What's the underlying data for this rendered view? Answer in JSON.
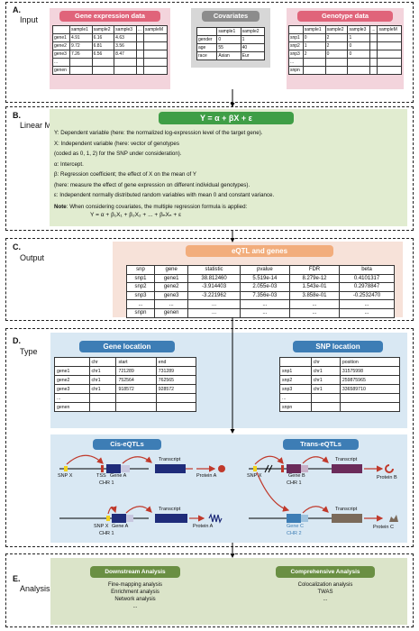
{
  "sections": {
    "a": {
      "label": "A.",
      "sub": "Input"
    },
    "b": {
      "label": "B.",
      "sub": "Linear Model"
    },
    "c": {
      "label": "C.",
      "sub": "Output"
    },
    "d": {
      "label": "D.",
      "sub": "Type"
    },
    "e": {
      "label": "E.",
      "sub": "Analysis"
    }
  },
  "input": {
    "gene_expr": {
      "title": "Gene expression data",
      "header": [
        "",
        "sample1",
        "sample2",
        "sample3",
        "...",
        "sampleM"
      ],
      "rows": [
        [
          "gene1",
          "4.91",
          "6.16",
          "4.63",
          "",
          ""
        ],
        [
          "gene2",
          "9.72",
          "6.81",
          "3.56",
          "",
          ""
        ],
        [
          "gene3",
          "7.26",
          "6.56",
          "8.47",
          "",
          ""
        ],
        [
          "...",
          "",
          "",
          "",
          "",
          ""
        ],
        [
          "genen",
          "",
          "",
          "",
          "",
          ""
        ]
      ]
    },
    "covariates": {
      "title": "Covariates",
      "header": [
        "",
        "sample1",
        "sample2"
      ],
      "rows": [
        [
          "gender",
          "0",
          "1"
        ],
        [
          "age",
          "55",
          "40"
        ],
        [
          "race",
          "Asian",
          "Eur"
        ]
      ]
    },
    "genotype": {
      "title": "Genotype data",
      "header": [
        "",
        "sample1",
        "sample2",
        "sample3",
        "...",
        "sampleM"
      ],
      "rows": [
        [
          "snp1",
          "0",
          "2",
          "1",
          "",
          ""
        ],
        [
          "snp2",
          "1",
          "2",
          "0",
          "",
          ""
        ],
        [
          "snp3",
          "2",
          "0",
          "0",
          "",
          ""
        ],
        [
          "...",
          "",
          "",
          "",
          "",
          ""
        ],
        [
          "snpn",
          "",
          "",
          "",
          "",
          ""
        ]
      ]
    }
  },
  "model": {
    "formula": "Y = α + βX + ε",
    "lines": [
      "Y: Dependent variable (here: the normalized log-expression level of the target gene).",
      "X: Independent variable (here: vector of genotypes",
      "      (coded as 0, 1, 2) for the SNP under consideration).",
      "α: Intercept.",
      "β: Regression coefficient; the effect of X on the mean of Y",
      "      (here: measure the effect of gene expression on different individual genotypes).",
      "ε: Independent normally distributed random variables with mean 0 and constant variance."
    ],
    "note_label": "Note",
    "note_text": ": When considering covariates, the multiple regression formula is applied:",
    "multi_formula": "Y = α + β₁X₁ + β₂X₂ + ... + βₙXₙ + ε"
  },
  "output": {
    "title": "eQTL and genes",
    "header": [
      "snp",
      "gene",
      "statistic",
      "pvalue",
      "FDR",
      "beta"
    ],
    "rows": [
      [
        "snp1",
        "gene1",
        "38.812460",
        "5.519e-14",
        "8.279e-12",
        "0.4101317"
      ],
      [
        "snp2",
        "gene2",
        "-3.914403",
        "2.055e-03",
        "1.543e-01",
        "0.2978847"
      ],
      [
        "snp3",
        "gene3",
        "-3.221962",
        "7.356e-03",
        "3.858e-01",
        "-0.2532470"
      ],
      [
        "...",
        "...",
        "...",
        "...",
        "...",
        "..."
      ],
      [
        "snpn",
        "genen",
        "...",
        "...",
        "...",
        "..."
      ]
    ]
  },
  "type": {
    "gene_loc": {
      "title": "Gene location",
      "header": [
        "",
        "chr",
        "start",
        "end"
      ],
      "rows": [
        [
          "gene1",
          "chr1",
          "721289",
          "731289"
        ],
        [
          "gene2",
          "chr1",
          "752564",
          "762565"
        ],
        [
          "gene3",
          "chr1",
          "918572",
          "928572"
        ],
        [
          "...",
          "",
          "",
          ""
        ],
        [
          "genen",
          "",
          "",
          ""
        ]
      ]
    },
    "snp_loc": {
      "title": "SNP location",
      "header": [
        "",
        "chr",
        "position"
      ],
      "rows": [
        [
          "snp1",
          "chr1",
          "31575998"
        ],
        [
          "snp2",
          "chr1",
          "259875965"
        ],
        [
          "snp3",
          "chr1",
          "336589710"
        ],
        [
          "...",
          "",
          ""
        ],
        [
          "snpn",
          "",
          ""
        ]
      ]
    },
    "cis": {
      "title": "Cis-eQTLs",
      "snp": "SNP X",
      "tss": "TSS",
      "gene": "Gene A",
      "chr": "CHR 1",
      "transcript": "Transcript",
      "protein": "Protein A",
      "snp2": "SNP X",
      "gene2": "Gene A",
      "chr2": "CHR 1",
      "transcript2": "Transcript",
      "protein2": "Protein A"
    },
    "trans": {
      "title": "Trans-eQTLs",
      "snp": "SNP X",
      "gene": "Gene B",
      "chr": "CHR 1",
      "transcript": "Transcript",
      "protein": "Protein B",
      "gene2": "Gene C",
      "chr2": "CHR 2",
      "transcript2": "Transcript",
      "protein2": "Protein C"
    }
  },
  "analysis": {
    "downstream": {
      "title": "Downstream Analysis",
      "items": [
        "Fine-mapping analysis",
        "Enrichment analysis",
        "Network analysis",
        "..."
      ]
    },
    "comprehensive": {
      "title": "Comprehensive Analysis",
      "items": [
        "Colocalization analysis",
        "TWAS",
        "..."
      ]
    }
  },
  "colors": {
    "pink_box": "#f3d4dc",
    "pink_pill": "#e0647a",
    "grey_box": "#d7d7d7",
    "grey_pill": "#8c8c8c",
    "green_box": "#e1ecd0",
    "green_pill": "#3f9e46",
    "peach_box": "#f7e2d9",
    "orange_pill": "#f2ad7c",
    "blue_box": "#d9e8f3",
    "blue_pill": "#3d7db5",
    "analysis_box": "#dbe4c9",
    "analysis_pill": "#6a8f43"
  }
}
